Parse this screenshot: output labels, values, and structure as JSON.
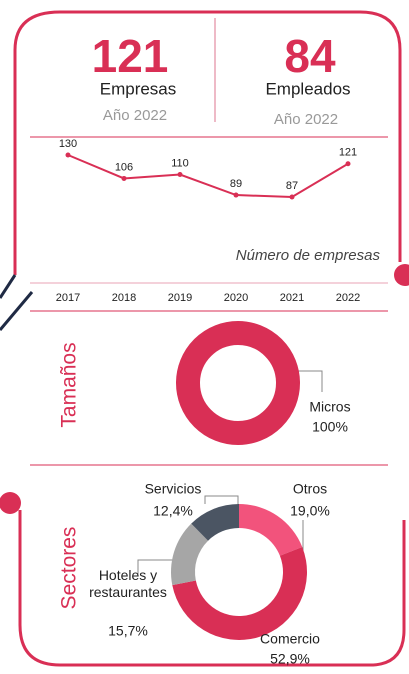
{
  "kpis": [
    {
      "value": 121,
      "label": "Empresas",
      "year": "Año 2022"
    },
    {
      "value": 84,
      "label": "Empleados",
      "year": "Año 2022"
    }
  ],
  "chart_data": [
    {
      "type": "line",
      "x": [
        2017,
        2018,
        2019,
        2020,
        2021,
        2022
      ],
      "values": [
        130,
        106,
        110,
        89,
        87,
        121
      ],
      "annotation": "Número de empresas",
      "color": "#d92f55"
    },
    {
      "type": "pie",
      "title": "Tamaños",
      "categories": [
        "Micros"
      ],
      "values": [
        100
      ],
      "value_labels": [
        "100%"
      ],
      "colors": [
        "#d92f55"
      ]
    },
    {
      "type": "pie",
      "title": "Sectores",
      "categories": [
        "Otros",
        "Comercio",
        "Hoteles y restaurantes",
        "Servicios"
      ],
      "values": [
        19.0,
        52.9,
        15.7,
        12.4
      ],
      "value_labels": [
        "19,0%",
        "52,9%",
        "15,7%",
        "12,4%"
      ],
      "colors": [
        "#f2537c",
        "#d92f55",
        "#a6a6a6",
        "#4b5563"
      ]
    }
  ]
}
